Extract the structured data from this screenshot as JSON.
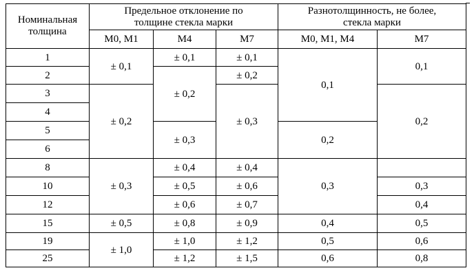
{
  "header": {
    "nominal_thickness": "Номинальная толщина",
    "limit_deviation": "Предельное отклонение по толщине стекла марки",
    "thickness_variation": "Разнотолщинность, не более, стекла марки",
    "sub": {
      "m0m1": "М0, М1",
      "m4": "М4",
      "m7": "М7",
      "m0m1m4": "М0, М1, М4",
      "m7b": "М7"
    }
  },
  "rows": {
    "thickness": [
      "1",
      "2",
      "3",
      "4",
      "5",
      "6",
      "8",
      "10",
      "12",
      "15",
      "19",
      "25"
    ],
    "dev_m0m1": [
      "± 0,1",
      "± 0,2",
      "± 0,3",
      "± 0,5",
      "± 1,0"
    ],
    "dev_m4": [
      "± 0,1",
      "± 0,2",
      "± 0,3",
      "± 0,4",
      "± 0,5",
      "± 0,6",
      "± 0,8",
      "± 1,0",
      "± 1,2"
    ],
    "dev_m7": [
      "± 0,1",
      "± 0,2",
      "± 0,3",
      "± 0,4",
      "± 0,6",
      "± 0,7",
      "± 0,9",
      "± 1,2",
      "± 1,5"
    ],
    "var_m0m1m4": [
      "0,1",
      "0,2",
      "0,3",
      "0,4",
      "0,5",
      "0,6"
    ],
    "var_m7": [
      "0,1",
      "0,2",
      "0,3",
      "0,4",
      "0,5",
      "0,6",
      "0,8"
    ]
  }
}
